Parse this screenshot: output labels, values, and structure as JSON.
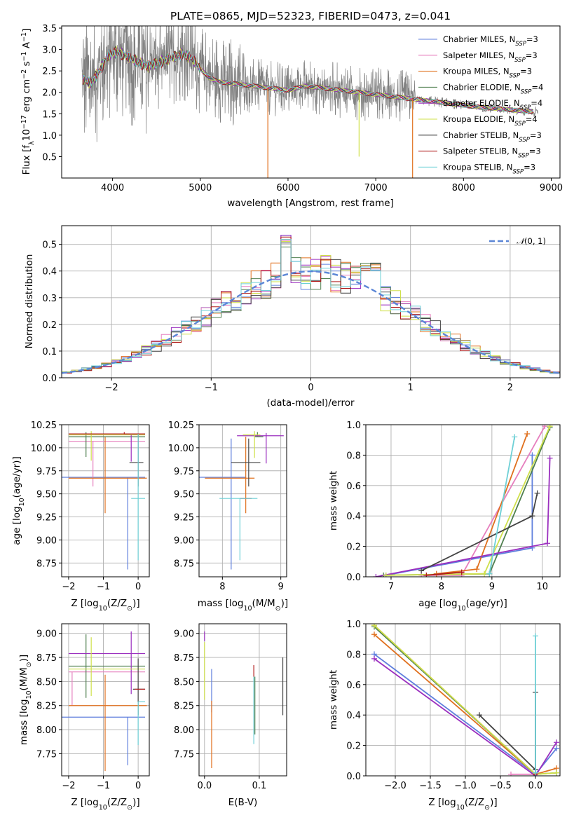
{
  "colors": {
    "Chabrier MILES": "#5f7fdd",
    "Salpeter MILES": "#e67fbe",
    "Kroupa MILES": "#e0701e",
    "Chabrier ELODIE": "#4f7f4f",
    "Salpeter ELODIE": "#9b2fbf",
    "Kroupa ELODIE": "#cfe04a",
    "Chabrier STELIB": "#444444",
    "Salpeter STELIB": "#b01c1c",
    "Kroupa STELIB": "#6ed0d6",
    "data": "#808080",
    "gauss": "#5b86d6",
    "grid": "#b0b0b0"
  },
  "legend_order": [
    "Chabrier MILES",
    "Salpeter MILES",
    "Kroupa MILES",
    "Chabrier ELODIE",
    "Salpeter ELODIE",
    "Kroupa ELODIE",
    "Chabrier STELIB",
    "Salpeter STELIB",
    "Kroupa STELIB"
  ],
  "chart_data": [
    {
      "id": "spectrum",
      "type": "line",
      "title": "PLATE=0865, MJD=52323, FIBERID=0473, z=0.041",
      "xlabel": "wavelength [Angstrom, rest frame]",
      "ylabel": "Flux [f_λ10^-17 erg cm^-2 s^-1 A^-1]",
      "xlim": [
        3420,
        9100
      ],
      "ylim": [
        0.0,
        3.55
      ],
      "xticks": [
        4000,
        5000,
        6000,
        7000,
        8000,
        9000
      ],
      "yticks": [
        0.5,
        1.0,
        1.5,
        2.0,
        2.5,
        3.0,
        3.5
      ],
      "legend": [
        {
          "name": "Chabrier MILES",
          "nssp": "3"
        },
        {
          "name": "Salpeter MILES",
          "nssp": "3"
        },
        {
          "name": "Kroupa MILES",
          "nssp": "3"
        },
        {
          "name": "Chabrier ELODIE",
          "nssp": "4"
        },
        {
          "name": "Salpeter ELODIE",
          "nssp": "4"
        },
        {
          "name": "Kroupa ELODIE",
          "nssp": "4"
        },
        {
          "name": "Chabrier STELIB",
          "nssp": "3"
        },
        {
          "name": "Salpeter STELIB",
          "nssp": "3"
        },
        {
          "name": "Kroupa STELIB",
          "nssp": "3"
        }
      ],
      "legend_position": "upper right",
      "continuum": {
        "x": [
          3680,
          3750,
          3850,
          3950,
          4050,
          4200,
          4400,
          4600,
          4800,
          4900,
          5000,
          5100,
          5200,
          5400,
          5600,
          5800,
          6000,
          6200,
          6400,
          6600,
          6800,
          7000,
          7200,
          7400,
          7600,
          7800,
          8000,
          8200,
          8400,
          8600,
          8800
        ],
        "y": [
          2.3,
          2.2,
          2.5,
          2.85,
          2.95,
          2.8,
          2.6,
          2.75,
          2.9,
          2.8,
          2.55,
          2.35,
          2.25,
          2.2,
          2.15,
          2.1,
          2.05,
          2.15,
          2.1,
          2.05,
          2.0,
          1.95,
          1.9,
          1.85,
          1.8,
          1.75,
          1.7,
          1.65,
          1.62,
          1.58,
          1.55
        ]
      },
      "dips": [
        {
          "x": 5770,
          "y": 0.0,
          "series": "Kroupa MILES"
        },
        {
          "x": 7420,
          "y": 0.0,
          "series": "Kroupa MILES"
        },
        {
          "x": 6810,
          "y": 0.5,
          "series": "Kroupa ELODIE"
        }
      ]
    },
    {
      "id": "residuals",
      "type": "step",
      "xlabel": "(data-model)/error",
      "ylabel": "Normed distribution",
      "xlim": [
        -2.5,
        2.5
      ],
      "ylim": [
        0.0,
        0.57
      ],
      "xticks": [
        -2,
        -1,
        0,
        1,
        2
      ],
      "yticks": [
        0.0,
        0.1,
        0.2,
        0.3,
        0.4,
        0.5
      ],
      "bin_width": 0.1,
      "bin_start": -2.5,
      "legend": "N(0,1)",
      "legend_position": "upper right"
    },
    {
      "id": "age-vs-Z",
      "type": "errorbar",
      "xlabel": "Z [log10(Z/Z_sun)]",
      "ylabel": "age [log10(age/yr)]",
      "xlim": [
        -2.2,
        0.32
      ],
      "ylim": [
        8.6,
        10.25
      ],
      "xticks": [
        -2,
        -1,
        0
      ],
      "yticks": [
        8.75,
        9.0,
        9.25,
        9.5,
        9.75,
        10.0,
        10.25
      ],
      "points": [
        {
          "series": "Chabrier MILES",
          "x": -0.3,
          "xerr": [
            2.0,
            0.5
          ],
          "y": 9.68,
          "yerr": [
            1.0,
            0.0
          ]
        },
        {
          "series": "Salpeter MILES",
          "x": -1.3,
          "xerr": [
            0.7,
            1.5
          ],
          "y": 10.07,
          "yerr": [
            0.49,
            0.0
          ]
        },
        {
          "series": "Kroupa MILES",
          "x": -0.95,
          "xerr": [
            1.05,
            1.2
          ],
          "y": 9.67,
          "yerr": [
            0.38,
            0.45
          ]
        },
        {
          "series": "Chabrier ELODIE",
          "x": -1.5,
          "xerr": [
            0.5,
            1.7
          ],
          "y": 10.12,
          "yerr": [
            0.22,
            0.05
          ]
        },
        {
          "series": "Salpeter ELODIE",
          "x": -0.2,
          "xerr": [
            0.2,
            0.4
          ],
          "y": 10.15,
          "yerr": [
            0.3,
            0.0
          ]
        },
        {
          "series": "Kroupa ELODIE",
          "x": -1.35,
          "xerr": [
            0.65,
            1.55
          ],
          "y": 10.14,
          "yerr": [
            0.28,
            0.04
          ]
        },
        {
          "series": "Chabrier STELIB",
          "x": 0.0,
          "xerr": [
            0.25,
            0.15
          ],
          "y": 9.84,
          "yerr": [
            0.26,
            0.3
          ]
        },
        {
          "series": "Salpeter STELIB",
          "x": -0.4,
          "xerr": [
            1.6,
            0.6
          ],
          "y": 10.15,
          "yerr": [
            0.0,
            0.02
          ]
        },
        {
          "series": "Kroupa STELIB",
          "x": 0.0,
          "xerr": [
            0.2,
            0.2
          ],
          "y": 9.45,
          "yerr": [
            0.67,
            0.7
          ]
        }
      ]
    },
    {
      "id": "age-vs-mass",
      "type": "errorbar",
      "xlabel": "mass [log10(M/M_sun)]",
      "ylabel": "",
      "xlim": [
        7.6,
        9.1
      ],
      "ylim": [
        8.6,
        10.25
      ],
      "xticks": [
        8,
        9
      ],
      "yticks": [
        8.75,
        9.0,
        9.25,
        9.5,
        9.75,
        10.0,
        10.25
      ],
      "points": [
        {
          "series": "Chabrier MILES",
          "x": 8.15,
          "xerr": [
            0.55,
            0.25
          ],
          "y": 9.68,
          "yerr": [
            1.0,
            0.42
          ]
        },
        {
          "series": "Salpeter MILES",
          "x": 8.6,
          "xerr": [
            0.05,
            0.05
          ],
          "y": 10.13,
          "yerr": [
            0.0,
            0.0
          ]
        },
        {
          "series": "Kroupa MILES",
          "x": 8.4,
          "xerr": [
            0.7,
            0.15
          ],
          "y": 9.67,
          "yerr": [
            0.38,
            0.45
          ]
        },
        {
          "series": "Chabrier ELODIE",
          "x": 8.6,
          "xerr": [
            0.05,
            0.1
          ],
          "y": 10.12,
          "yerr": [
            0.0,
            0.05
          ]
        },
        {
          "series": "Salpeter ELODIE",
          "x": 8.75,
          "xerr": [
            0.5,
            0.3
          ],
          "y": 10.13,
          "yerr": [
            0.3,
            0.03
          ]
        },
        {
          "series": "Kroupa ELODIE",
          "x": 8.55,
          "xerr": [
            0.2,
            0.1
          ],
          "y": 10.14,
          "yerr": [
            0.25,
            0.04
          ]
        },
        {
          "series": "Chabrier STELIB",
          "x": 8.45,
          "xerr": [
            0.3,
            0.2
          ],
          "y": 9.84,
          "yerr": [
            0.26,
            0.26
          ]
        },
        {
          "series": "Salpeter STELIB",
          "x": 8.4,
          "xerr": [
            0.1,
            0.1
          ],
          "y": 9.45,
          "yerr": [
            0.0,
            0.0
          ]
        },
        {
          "series": "Kroupa STELIB",
          "x": 8.3,
          "xerr": [
            0.35,
            0.3
          ],
          "y": 9.45,
          "yerr": [
            0.67,
            0.0
          ]
        }
      ]
    },
    {
      "id": "mass-weight-vs-age",
      "type": "line",
      "xlabel": "age [log10(age/yr)]",
      "ylabel": "mass weight",
      "xlim": [
        6.5,
        10.35
      ],
      "ylim": [
        0.0,
        1.0
      ],
      "xticks": [
        7,
        8,
        9,
        10
      ],
      "yticks": [
        0.0,
        0.2,
        0.4,
        0.6,
        0.8,
        1.0
      ],
      "series": [
        {
          "name": "Chabrier MILES",
          "x": [
            6.9,
            9.8,
            9.8
          ],
          "y": [
            0.01,
            0.19,
            0.8
          ]
        },
        {
          "name": "Salpeter MILES",
          "x": [
            7.6,
            8.4,
            10.05
          ],
          "y": [
            0.01,
            0.01,
            0.99
          ]
        },
        {
          "name": "Kroupa MILES",
          "x": [
            7.9,
            8.7,
            9.7
          ],
          "y": [
            0.02,
            0.05,
            0.94
          ]
        },
        {
          "name": "Chabrier ELODIE",
          "x": [
            6.85,
            8.95,
            10.15
          ],
          "y": [
            0.01,
            0.02,
            0.98
          ]
        },
        {
          "name": "Salpeter ELODIE",
          "x": [
            6.7,
            10.1,
            10.15
          ],
          "y": [
            0.0,
            0.22,
            0.78
          ]
        },
        {
          "name": "Kroupa ELODIE",
          "x": [
            6.9,
            8.85,
            10.15
          ],
          "y": [
            0.01,
            0.02,
            0.99
          ]
        },
        {
          "name": "Chabrier STELIB",
          "x": [
            7.6,
            9.8,
            9.9
          ],
          "y": [
            0.04,
            0.4,
            0.55
          ]
        },
        {
          "name": "Salpeter STELIB",
          "x": [
            7.7,
            8.4
          ],
          "y": [
            0.01,
            0.03
          ]
        },
        {
          "name": "Kroupa STELIB",
          "x": [
            8.95,
            9.45
          ],
          "y": [
            0.02,
            0.92
          ]
        }
      ]
    },
    {
      "id": "mass-vs-Z",
      "type": "errorbar",
      "xlabel": "Z [log10(Z/Z_sun)]",
      "ylabel": "mass [log10(M/M_sun)]",
      "xlim": [
        -2.2,
        0.32
      ],
      "ylim": [
        7.52,
        9.1
      ],
      "xticks": [
        -2,
        -1,
        0
      ],
      "yticks": [
        7.75,
        8.0,
        8.25,
        8.5,
        8.75,
        9.0
      ],
      "points": [
        {
          "series": "Chabrier MILES",
          "x": -0.3,
          "xerr": [
            2.0,
            0.5
          ],
          "y": 8.13,
          "yerr": [
            0.5,
            0.0
          ]
        },
        {
          "series": "Salpeter MILES",
          "x": -1.9,
          "xerr": [
            0.1,
            2.1
          ],
          "y": 8.6,
          "yerr": [
            0.35,
            0.0
          ]
        },
        {
          "series": "Kroupa MILES",
          "x": -0.95,
          "xerr": [
            1.05,
            1.2
          ],
          "y": 8.25,
          "yerr": [
            0.68,
            0.32
          ]
        },
        {
          "series": "Chabrier ELODIE",
          "x": -1.5,
          "xerr": [
            0.5,
            1.7
          ],
          "y": 8.66,
          "yerr": [
            0.33,
            0.33
          ]
        },
        {
          "series": "Salpeter ELODIE",
          "x": -0.2,
          "xerr": [
            1.8,
            0.4
          ],
          "y": 8.79,
          "yerr": [
            0.42,
            0.23
          ]
        },
        {
          "series": "Kroupa ELODIE",
          "x": -1.35,
          "xerr": [
            0.65,
            1.55
          ],
          "y": 8.63,
          "yerr": [
            0.28,
            0.33
          ]
        },
        {
          "series": "Chabrier STELIB",
          "x": 0.0,
          "xerr": [
            0.15,
            0.2
          ],
          "y": 8.42,
          "yerr": [
            0.27,
            0.32
          ]
        },
        {
          "series": "Salpeter STELIB",
          "x": 0.0,
          "xerr": [
            0.1,
            0.2
          ],
          "y": 8.42,
          "yerr": [
            0.0,
            0.0
          ]
        },
        {
          "series": "Kroupa STELIB",
          "x": 0.0,
          "xerr": [
            0.0,
            0.2
          ],
          "y": 8.29,
          "yerr": [
            0.45,
            0.0
          ]
        }
      ]
    },
    {
      "id": "mass-vs-EBV",
      "type": "errorbar",
      "xlabel": "E(B-V)",
      "ylabel": "",
      "xlim": [
        -0.01,
        0.15
      ],
      "ylim": [
        7.52,
        9.1
      ],
      "xticks": [
        0.0,
        0.1
      ],
      "yticks": [
        7.75,
        8.0,
        8.25,
        8.5,
        8.75,
        9.0
      ],
      "points": [
        {
          "series": "Chabrier MILES",
          "x": 0.013,
          "y": 8.38,
          "yerr": [
            0.2,
            0.25
          ]
        },
        {
          "series": "Salpeter ELODIE",
          "x": 0.0,
          "y": 8.92,
          "yerr": [
            0.0,
            0.1
          ]
        },
        {
          "series": "Kroupa ELODIE",
          "x": 0.0,
          "y": 8.63,
          "yerr": [
            0.32,
            0.28
          ]
        },
        {
          "series": "Kroupa MILES",
          "x": 0.013,
          "y": 8.1,
          "yerr": [
            0.5,
            0.2
          ]
        },
        {
          "series": "Salpeter STELIB",
          "x": 0.09,
          "y": 8.55,
          "yerr": [
            0.0,
            0.12
          ]
        },
        {
          "series": "Kroupa STELIB",
          "x": 0.09,
          "y": 8.2,
          "yerr": [
            0.35,
            0.35
          ]
        },
        {
          "series": "Chabrier STELIB",
          "x": 0.143,
          "y": 8.45,
          "yerr": [
            0.3,
            0.3
          ]
        },
        {
          "series": "Chabrier ELODIE",
          "x": 0.092,
          "y": 8.25,
          "yerr": [
            0.3,
            0.3
          ]
        }
      ]
    },
    {
      "id": "mass-weight-vs-Z",
      "type": "line",
      "xlabel": "Z [log10(Z/Z_sun)]",
      "ylabel": "mass weight",
      "xlim": [
        -2.42,
        0.35
      ],
      "ylim": [
        0.0,
        1.0
      ],
      "xticks": [
        -2.0,
        -1.5,
        -1.0,
        -0.5,
        0.0
      ],
      "yticks": [
        0.0,
        0.2,
        0.4,
        0.6,
        0.8,
        1.0
      ],
      "series": [
        {
          "name": "Chabrier MILES",
          "x": [
            -2.3,
            0.0,
            0.3
          ],
          "y": [
            0.8,
            0.01,
            0.18
          ]
        },
        {
          "name": "Salpeter MILES",
          "x": [
            -0.35,
            0.0,
            -2.3
          ],
          "y": [
            0.01,
            0.01,
            0.99
          ]
        },
        {
          "name": "Kroupa MILES",
          "x": [
            -2.3,
            0.0,
            0.3
          ],
          "y": [
            0.93,
            0.01,
            0.05
          ]
        },
        {
          "name": "Chabrier ELODIE",
          "x": [
            -2.3,
            0.0,
            0.3
          ],
          "y": [
            0.98,
            0.01,
            0.02
          ]
        },
        {
          "name": "Salpeter ELODIE",
          "x": [
            -2.3,
            0.0,
            0.3
          ],
          "y": [
            0.77,
            0.0,
            0.22
          ]
        },
        {
          "name": "Kroupa ELODIE",
          "x": [
            -2.3,
            0.0,
            0.3
          ],
          "y": [
            0.99,
            0.01,
            0.02
          ]
        },
        {
          "name": "Chabrier STELIB",
          "x": [
            -0.8,
            0.0,
            0.0
          ],
          "y": [
            0.4,
            0.04,
            0.55
          ]
        },
        {
          "name": "Salpeter STELIB",
          "x": [
            0.0
          ],
          "y": [
            0.01
          ]
        },
        {
          "name": "Kroupa STELIB",
          "x": [
            0.0,
            0.0
          ],
          "y": [
            0.02,
            0.92
          ]
        }
      ]
    }
  ]
}
